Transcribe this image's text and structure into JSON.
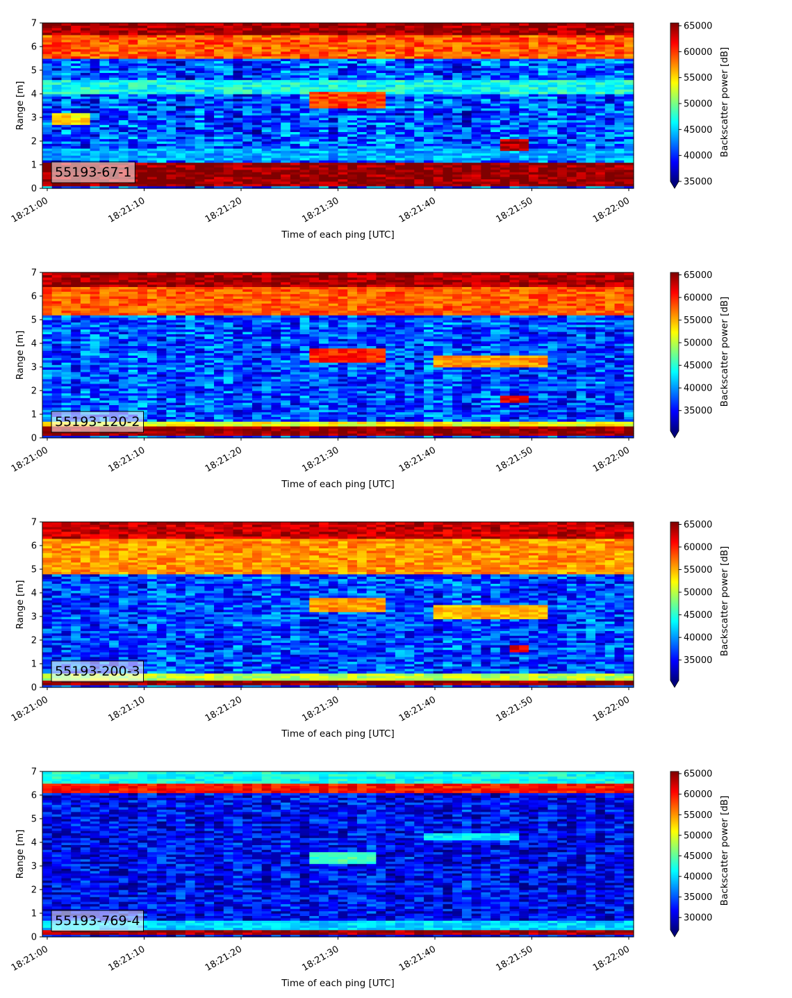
{
  "colormap": {
    "name": "jet",
    "stops": [
      "#00007f",
      "#0000ff",
      "#007fff",
      "#00ffff",
      "#7fff7f",
      "#ffff00",
      "#ff7f00",
      "#ff0000",
      "#7f0000"
    ]
  },
  "chart_data": [
    {
      "type": "heatmap",
      "tag": "55193-67-1",
      "xlabel": "Time of each ping [UTC]",
      "ylabel": "Range [m]",
      "colorbar_label": "Backscatter power [dB]",
      "x_range": [
        "18:20:59.5",
        "18:22:00.5"
      ],
      "xticks": [
        "18:21:00",
        "18:21:10",
        "18:21:20",
        "18:21:30",
        "18:21:40",
        "18:21:50",
        "18:22:00"
      ],
      "ylim": [
        0,
        7
      ],
      "yticks": [
        "0",
        "1",
        "2",
        "3",
        "4",
        "5",
        "6",
        "7"
      ],
      "clim": [
        35000,
        65535
      ],
      "cticks": [
        "35000",
        "40000",
        "45000",
        "50000",
        "55000",
        "60000",
        "65000"
      ],
      "grid": false,
      "features": [
        {
          "kind": "band",
          "y0": 0.15,
          "y1": 1.1,
          "value": 65000
        },
        {
          "kind": "band",
          "y0": 6.5,
          "y1": 7.0,
          "value": 64500
        },
        {
          "kind": "band",
          "y0": 5.5,
          "y1": 6.5,
          "value": 59000
        },
        {
          "kind": "band",
          "y0": 1.2,
          "y1": 1.7,
          "value": 44000
        },
        {
          "kind": "band",
          "y0": 4.0,
          "y1": 4.6,
          "value": 47000
        },
        {
          "kind": "blob",
          "t0": 28,
          "t1": 35,
          "y0": 3.4,
          "y1": 4.1,
          "value": 60000
        },
        {
          "kind": "blob",
          "t0": 48,
          "t1": 50,
          "y0": 1.6,
          "y1": 2.1,
          "value": 64000
        },
        {
          "kind": "blob",
          "t0": 1,
          "t1": 4,
          "y0": 2.7,
          "y1": 3.2,
          "value": 55000
        }
      ],
      "background_level": 41000
    },
    {
      "type": "heatmap",
      "tag": "55193-120-2",
      "xlabel": "Time of each ping [UTC]",
      "ylabel": "Range [m]",
      "colorbar_label": "Backscatter power [dB]",
      "x_range": [
        "18:20:59.5",
        "18:22:00.5"
      ],
      "xticks": [
        "18:21:00",
        "18:21:10",
        "18:21:20",
        "18:21:30",
        "18:21:40",
        "18:21:50",
        "18:22:00"
      ],
      "ylim": [
        0,
        7
      ],
      "yticks": [
        "0",
        "1",
        "2",
        "3",
        "4",
        "5",
        "6",
        "7"
      ],
      "clim": [
        30500,
        65535
      ],
      "cticks": [
        "35000",
        "40000",
        "45000",
        "50000",
        "55000",
        "60000",
        "65000"
      ],
      "grid": false,
      "features": [
        {
          "kind": "band",
          "y0": 0.1,
          "y1": 0.5,
          "value": 65000
        },
        {
          "kind": "band",
          "y0": 0.5,
          "y1": 0.7,
          "value": 52000
        },
        {
          "kind": "band",
          "y0": 6.4,
          "y1": 7.0,
          "value": 64000
        },
        {
          "kind": "band",
          "y0": 5.2,
          "y1": 6.4,
          "value": 58000
        },
        {
          "kind": "blob",
          "t0": 28,
          "t1": 35,
          "y0": 3.2,
          "y1": 3.8,
          "value": 60000
        },
        {
          "kind": "blob",
          "t0": 41,
          "t1": 52,
          "y0": 3.0,
          "y1": 3.5,
          "value": 56000
        },
        {
          "kind": "blob",
          "t0": 48,
          "t1": 50,
          "y0": 1.5,
          "y1": 1.8,
          "value": 62000
        }
      ],
      "background_level": 37500
    },
    {
      "type": "heatmap",
      "tag": "55193-200-3",
      "xlabel": "Time of each ping [UTC]",
      "ylabel": "Range [m]",
      "colorbar_label": "Backscatter power [dB]",
      "x_range": [
        "18:20:59.5",
        "18:22:00.5"
      ],
      "xticks": [
        "18:21:00",
        "18:21:10",
        "18:21:20",
        "18:21:30",
        "18:21:40",
        "18:21:50",
        "18:22:00"
      ],
      "ylim": [
        0,
        7
      ],
      "yticks": [
        "0",
        "1",
        "2",
        "3",
        "4",
        "5",
        "6",
        "7"
      ],
      "clim": [
        30500,
        65535
      ],
      "cticks": [
        "35000",
        "40000",
        "45000",
        "50000",
        "55000",
        "60000",
        "65000"
      ],
      "grid": false,
      "features": [
        {
          "kind": "band",
          "y0": 0.1,
          "y1": 0.35,
          "value": 65000
        },
        {
          "kind": "band",
          "y0": 0.35,
          "y1": 0.55,
          "value": 50000
        },
        {
          "kind": "band",
          "y0": 6.3,
          "y1": 7.0,
          "value": 63000
        },
        {
          "kind": "band",
          "y0": 4.8,
          "y1": 6.3,
          "value": 56000
        },
        {
          "kind": "blob",
          "t0": 28,
          "t1": 35,
          "y0": 3.2,
          "y1": 3.8,
          "value": 56000
        },
        {
          "kind": "blob",
          "t0": 41,
          "t1": 52,
          "y0": 2.9,
          "y1": 3.5,
          "value": 55000
        },
        {
          "kind": "blob",
          "t0": 49,
          "t1": 50,
          "y0": 1.5,
          "y1": 1.8,
          "value": 62000
        }
      ],
      "background_level": 37000
    },
    {
      "type": "heatmap",
      "tag": "55193-769-4",
      "xlabel": "Time of each ping [UTC]",
      "ylabel": "Range [m]",
      "colorbar_label": "Backscatter power [dB]",
      "x_range": [
        "18:20:59.5",
        "18:22:00.5"
      ],
      "xticks": [
        "18:21:00",
        "18:21:10",
        "18:21:20",
        "18:21:30",
        "18:21:40",
        "18:21:50",
        "18:22:00"
      ],
      "ylim": [
        0,
        7
      ],
      "yticks": [
        "0",
        "1",
        "2",
        "3",
        "4",
        "5",
        "6",
        "7"
      ],
      "clim": [
        27000,
        65535
      ],
      "cticks": [
        "30000",
        "35000",
        "40000",
        "45000",
        "50000",
        "55000",
        "60000",
        "65000"
      ],
      "grid": false,
      "features": [
        {
          "kind": "band",
          "y0": 0.15,
          "y1": 0.35,
          "value": 64000
        },
        {
          "kind": "band",
          "y0": 6.1,
          "y1": 6.5,
          "value": 60000
        },
        {
          "kind": "band",
          "y0": 6.5,
          "y1": 7.0,
          "value": 42000
        },
        {
          "kind": "band",
          "y0": 0.35,
          "y1": 0.7,
          "value": 40000
        },
        {
          "kind": "blob",
          "t0": 28,
          "t1": 34,
          "y0": 3.1,
          "y1": 3.6,
          "value": 44000
        },
        {
          "kind": "blob",
          "t0": 40,
          "t1": 49,
          "y0": 4.1,
          "y1": 4.4,
          "value": 41000
        }
      ],
      "background_level": 31500
    }
  ]
}
